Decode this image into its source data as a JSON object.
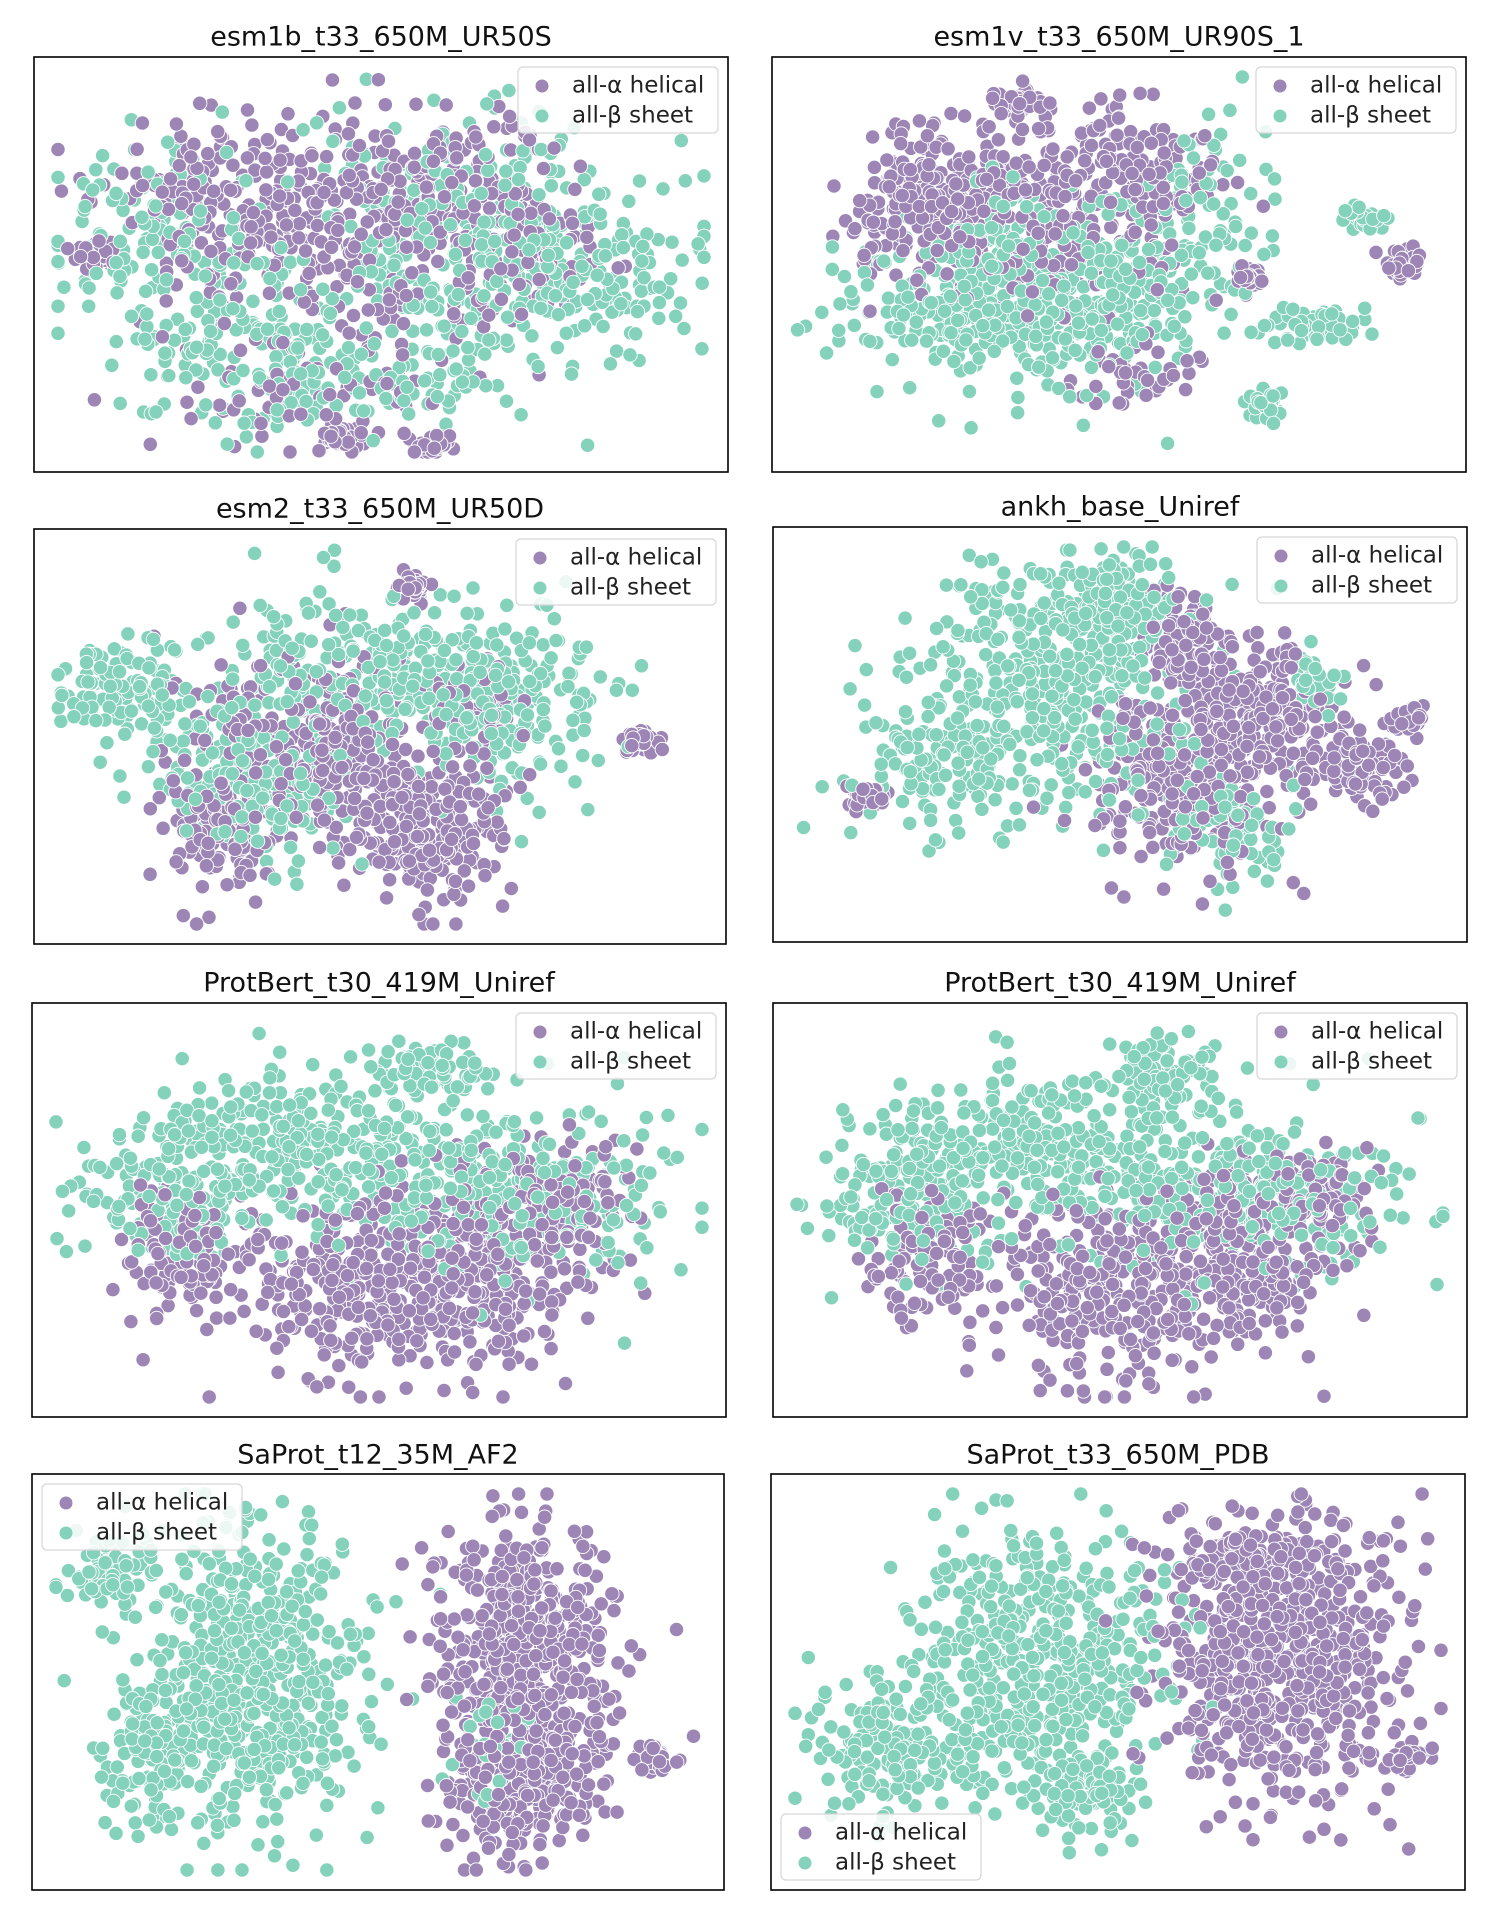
{
  "figure": {
    "description_type": "t-SNE scatter comparison",
    "colors": {
      "alpha": "#9d86b6",
      "beta": "#85d2bc",
      "frame": "#000000"
    }
  },
  "chart_data": [
    {
      "type": "scatter",
      "title": "esm1b_t33_650M_UR50S",
      "legend": [
        "all-α helical",
        "all-β sheet"
      ],
      "legend_loc": "upper right",
      "xlabel": "",
      "ylabel": "",
      "ticks": false,
      "xlim": [
        -100,
        100
      ],
      "ylim": [
        -60,
        60
      ],
      "points_per_class": 200,
      "clusters": [
        {
          "cls": "alpha",
          "x": -50,
          "y": 20,
          "sx": 18,
          "sy": 12,
          "w": 0.2
        },
        {
          "cls": "alpha",
          "x": -10,
          "y": 8,
          "sx": 25,
          "sy": 20,
          "w": 0.3
        },
        {
          "cls": "alpha",
          "x": 20,
          "y": 25,
          "sx": 20,
          "sy": 12,
          "w": 0.15
        },
        {
          "cls": "alpha",
          "x": 45,
          "y": 5,
          "sx": 15,
          "sy": 12,
          "w": 0.1
        },
        {
          "cls": "alpha",
          "x": -25,
          "y": -38,
          "sx": 20,
          "sy": 12,
          "w": 0.1
        },
        {
          "cls": "alpha",
          "x": -12,
          "y": -55,
          "sx": 3,
          "sy": 2,
          "w": 0.05
        },
        {
          "cls": "alpha",
          "x": 15,
          "y": -58,
          "sx": 3,
          "sy": 2,
          "w": 0.05
        },
        {
          "cls": "alpha",
          "x": -88,
          "y": 3,
          "sx": 3,
          "sy": 2,
          "w": 0.05
        },
        {
          "cls": "beta",
          "x": -70,
          "y": 10,
          "sx": 15,
          "sy": 15,
          "w": 0.15
        },
        {
          "cls": "beta",
          "x": -40,
          "y": -25,
          "sx": 20,
          "sy": 15,
          "w": 0.2
        },
        {
          "cls": "beta",
          "x": 20,
          "y": 10,
          "sx": 25,
          "sy": 22,
          "w": 0.3
        },
        {
          "cls": "beta",
          "x": 55,
          "y": 0,
          "sx": 20,
          "sy": 15,
          "w": 0.25
        },
        {
          "cls": "beta",
          "x": 0,
          "y": -38,
          "sx": 25,
          "sy": 8,
          "w": 0.1
        }
      ]
    },
    {
      "type": "scatter",
      "title": "esm1v_t33_650M_UR90S_1",
      "legend": [
        "all-α helical",
        "all-β sheet"
      ],
      "legend_loc": "upper right",
      "xlabel": "",
      "ylabel": "",
      "ticks": false,
      "xlim": [
        -100,
        100
      ],
      "ylim": [
        -60,
        60
      ],
      "points_per_class": 200,
      "clusters": [
        {
          "cls": "alpha",
          "x": -55,
          "y": 20,
          "sx": 15,
          "sy": 12,
          "w": 0.35
        },
        {
          "cls": "alpha",
          "x": -20,
          "y": 15,
          "sx": 20,
          "sy": 15,
          "w": 0.3
        },
        {
          "cls": "alpha",
          "x": 8,
          "y": 30,
          "sx": 10,
          "sy": 10,
          "w": 0.15
        },
        {
          "cls": "alpha",
          "x": -30,
          "y": 52,
          "sx": 4,
          "sy": 2,
          "w": 0.05
        },
        {
          "cls": "alpha",
          "x": 40,
          "y": -5,
          "sx": 2,
          "sy": 2,
          "w": 0.05
        },
        {
          "cls": "alpha",
          "x": 88,
          "y": 0,
          "sx": 3,
          "sy": 2,
          "w": 0.05
        },
        {
          "cls": "alpha",
          "x": 5,
          "y": -35,
          "sx": 10,
          "sy": 5,
          "w": 0.05
        },
        {
          "cls": "beta",
          "x": -40,
          "y": -15,
          "sx": 22,
          "sy": 12,
          "w": 0.4
        },
        {
          "cls": "beta",
          "x": 0,
          "y": -5,
          "sx": 20,
          "sy": 15,
          "w": 0.3
        },
        {
          "cls": "beta",
          "x": -35,
          "y": 10,
          "sx": 10,
          "sy": 8,
          "w": 0.1
        },
        {
          "cls": "beta",
          "x": 62,
          "y": -20,
          "sx": 8,
          "sy": 4,
          "w": 0.06
        },
        {
          "cls": "beta",
          "x": 75,
          "y": 15,
          "sx": 3,
          "sy": 2,
          "w": 0.04
        },
        {
          "cls": "beta",
          "x": 45,
          "y": -45,
          "sx": 3,
          "sy": 3,
          "w": 0.04
        },
        {
          "cls": "beta",
          "x": 30,
          "y": 20,
          "sx": 10,
          "sy": 15,
          "w": 0.06
        }
      ]
    },
    {
      "type": "scatter",
      "title": "esm2_t33_650M_UR50D",
      "legend": [
        "all-α helical",
        "all-β sheet"
      ],
      "legend_loc": "upper right",
      "xlabel": "",
      "ylabel": "",
      "ticks": false,
      "xlim": [
        -100,
        100
      ],
      "ylim": [
        -60,
        60
      ],
      "points_per_class": 200,
      "clusters": [
        {
          "cls": "alpha",
          "x": -20,
          "y": -5,
          "sx": 20,
          "sy": 15,
          "w": 0.4
        },
        {
          "cls": "alpha",
          "x": 15,
          "y": -30,
          "sx": 12,
          "sy": 12,
          "w": 0.3
        },
        {
          "cls": "alpha",
          "x": -50,
          "y": -30,
          "sx": 10,
          "sy": 10,
          "w": 0.15
        },
        {
          "cls": "alpha",
          "x": 10,
          "y": 48,
          "sx": 2,
          "sy": 2,
          "w": 0.05
        },
        {
          "cls": "alpha",
          "x": 80,
          "y": -2,
          "sx": 3,
          "sy": 2,
          "w": 0.05
        },
        {
          "cls": "alpha",
          "x": 30,
          "y": 10,
          "sx": 8,
          "sy": 8,
          "w": 0.05
        },
        {
          "cls": "beta",
          "x": -80,
          "y": 15,
          "sx": 10,
          "sy": 8,
          "w": 0.15
        },
        {
          "cls": "beta",
          "x": -10,
          "y": 20,
          "sx": 25,
          "sy": 12,
          "w": 0.35
        },
        {
          "cls": "beta",
          "x": 40,
          "y": 10,
          "sx": 15,
          "sy": 15,
          "w": 0.25
        },
        {
          "cls": "beta",
          "x": -40,
          "y": -15,
          "sx": 15,
          "sy": 12,
          "w": 0.25
        }
      ]
    },
    {
      "type": "scatter",
      "title": "ankh_base_Uniref",
      "legend": [
        "all-α helical",
        "all-β sheet"
      ],
      "legend_loc": "upper right",
      "xlabel": "",
      "ylabel": "",
      "ticks": false,
      "xlim": [
        -100,
        100
      ],
      "ylim": [
        -60,
        60
      ],
      "points_per_class": 200,
      "clusters": [
        {
          "cls": "alpha",
          "x": 20,
          "y": -15,
          "sx": 15,
          "sy": 15,
          "w": 0.35
        },
        {
          "cls": "alpha",
          "x": 45,
          "y": 5,
          "sx": 12,
          "sy": 12,
          "w": 0.3
        },
        {
          "cls": "alpha",
          "x": 20,
          "y": 30,
          "sx": 6,
          "sy": 8,
          "w": 0.15
        },
        {
          "cls": "alpha",
          "x": 75,
          "y": -10,
          "sx": 8,
          "sy": 6,
          "w": 0.1
        },
        {
          "cls": "alpha",
          "x": -78,
          "y": -20,
          "sx": 3,
          "sy": 2,
          "w": 0.05
        },
        {
          "cls": "alpha",
          "x": 90,
          "y": 5,
          "sx": 3,
          "sy": 2,
          "w": 0.05
        },
        {
          "cls": "beta",
          "x": -20,
          "y": 15,
          "sx": 22,
          "sy": 20,
          "w": 0.55
        },
        {
          "cls": "beta",
          "x": 0,
          "y": 40,
          "sx": 8,
          "sy": 8,
          "w": 0.15
        },
        {
          "cls": "beta",
          "x": -55,
          "y": -10,
          "sx": 15,
          "sy": 12,
          "w": 0.15
        },
        {
          "cls": "beta",
          "x": 60,
          "y": 15,
          "sx": 5,
          "sy": 5,
          "w": 0.05
        },
        {
          "cls": "beta",
          "x": 35,
          "y": -30,
          "sx": 10,
          "sy": 8,
          "w": 0.1
        }
      ]
    },
    {
      "type": "scatter",
      "title": "ProtBert_t30_419M_Uniref",
      "legend": [
        "all-α helical",
        "all-β sheet"
      ],
      "legend_loc": "upper right",
      "xlabel": "",
      "ylabel": "",
      "ticks": false,
      "xlim": [
        -100,
        100
      ],
      "ylim": [
        -60,
        60
      ],
      "points_per_class": 200,
      "clusters": [
        {
          "cls": "alpha",
          "x": -60,
          "y": -15,
          "sx": 10,
          "sy": 10,
          "w": 0.15
        },
        {
          "cls": "alpha",
          "x": 0,
          "y": -25,
          "sx": 20,
          "sy": 15,
          "w": 0.45
        },
        {
          "cls": "alpha",
          "x": 40,
          "y": -15,
          "sx": 15,
          "sy": 15,
          "w": 0.3
        },
        {
          "cls": "alpha",
          "x": 60,
          "y": 5,
          "sx": 10,
          "sy": 8,
          "w": 0.1
        },
        {
          "cls": "beta",
          "x": -65,
          "y": 5,
          "sx": 15,
          "sy": 12,
          "w": 0.2
        },
        {
          "cls": "beta",
          "x": -20,
          "y": 20,
          "sx": 25,
          "sy": 12,
          "w": 0.35
        },
        {
          "cls": "beta",
          "x": 40,
          "y": 5,
          "sx": 25,
          "sy": 15,
          "w": 0.35
        },
        {
          "cls": "beta",
          "x": 15,
          "y": 45,
          "sx": 8,
          "sy": 5,
          "w": 0.1
        }
      ]
    },
    {
      "type": "scatter",
      "title": "ProtBert_t30_419M_Uniref",
      "legend": [
        "all-α helical",
        "all-β sheet"
      ],
      "legend_loc": "upper right",
      "xlabel": "",
      "ylabel": "",
      "ticks": false,
      "xlim": [
        -100,
        100
      ],
      "ylim": [
        -60,
        60
      ],
      "points_per_class": 200,
      "clusters": [
        {
          "cls": "alpha",
          "x": -60,
          "y": -15,
          "sx": 10,
          "sy": 10,
          "w": 0.15
        },
        {
          "cls": "alpha",
          "x": 0,
          "y": -25,
          "sx": 20,
          "sy": 15,
          "w": 0.45
        },
        {
          "cls": "alpha",
          "x": 40,
          "y": -15,
          "sx": 15,
          "sy": 15,
          "w": 0.3
        },
        {
          "cls": "alpha",
          "x": 60,
          "y": 5,
          "sx": 10,
          "sy": 8,
          "w": 0.1
        },
        {
          "cls": "beta",
          "x": -65,
          "y": 5,
          "sx": 15,
          "sy": 12,
          "w": 0.2
        },
        {
          "cls": "beta",
          "x": -20,
          "y": 20,
          "sx": 25,
          "sy": 12,
          "w": 0.35
        },
        {
          "cls": "beta",
          "x": 40,
          "y": 5,
          "sx": 25,
          "sy": 15,
          "w": 0.35
        },
        {
          "cls": "beta",
          "x": 15,
          "y": 45,
          "sx": 8,
          "sy": 5,
          "w": 0.1
        }
      ]
    },
    {
      "type": "scatter",
      "title": "SaProt_t12_35M_AF2",
      "legend": [
        "all-α helical",
        "all-β sheet"
      ],
      "legend_loc": "upper left",
      "xlabel": "",
      "ylabel": "",
      "ticks": false,
      "xlim": [
        -100,
        100
      ],
      "ylim": [
        -60,
        60
      ],
      "points_per_class": 200,
      "clusters": [
        {
          "cls": "alpha",
          "x": 45,
          "y": 10,
          "sx": 14,
          "sy": 20,
          "w": 0.6
        },
        {
          "cls": "alpha",
          "x": 45,
          "y": -30,
          "sx": 14,
          "sy": 12,
          "w": 0.35
        },
        {
          "cls": "alpha",
          "x": 85,
          "y": -25,
          "sx": 3,
          "sy": 2,
          "w": 0.05
        },
        {
          "cls": "beta",
          "x": -40,
          "y": 0,
          "sx": 18,
          "sy": 25,
          "w": 0.75
        },
        {
          "cls": "beta",
          "x": -85,
          "y": 35,
          "sx": 6,
          "sy": 5,
          "w": 0.1
        },
        {
          "cls": "beta",
          "x": -70,
          "y": -25,
          "sx": 8,
          "sy": 8,
          "w": 0.1
        },
        {
          "cls": "beta",
          "x": 35,
          "y": -20,
          "sx": 6,
          "sy": 8,
          "w": 0.05
        }
      ]
    },
    {
      "type": "scatter",
      "title": "SaProt_t33_650M_PDB",
      "legend": [
        "all-α helical",
        "all-β sheet"
      ],
      "legend_loc": "lower left",
      "xlabel": "",
      "ylabel": "",
      "ticks": false,
      "xlim": [
        -100,
        100
      ],
      "ylim": [
        -60,
        60
      ],
      "points_per_class": 200,
      "clusters": [
        {
          "cls": "alpha",
          "x": 50,
          "y": 5,
          "sx": 18,
          "sy": 22,
          "w": 0.8
        },
        {
          "cls": "alpha",
          "x": 40,
          "y": 40,
          "sx": 15,
          "sy": 8,
          "w": 0.15
        },
        {
          "cls": "alpha",
          "x": 90,
          "y": -25,
          "sx": 3,
          "sy": 2,
          "w": 0.05
        },
        {
          "cls": "beta",
          "x": -25,
          "y": 10,
          "sx": 20,
          "sy": 20,
          "w": 0.6
        },
        {
          "cls": "beta",
          "x": -65,
          "y": -20,
          "sx": 15,
          "sy": 12,
          "w": 0.25
        },
        {
          "cls": "beta",
          "x": -10,
          "y": -35,
          "sx": 10,
          "sy": 8,
          "w": 0.15
        }
      ]
    }
  ]
}
